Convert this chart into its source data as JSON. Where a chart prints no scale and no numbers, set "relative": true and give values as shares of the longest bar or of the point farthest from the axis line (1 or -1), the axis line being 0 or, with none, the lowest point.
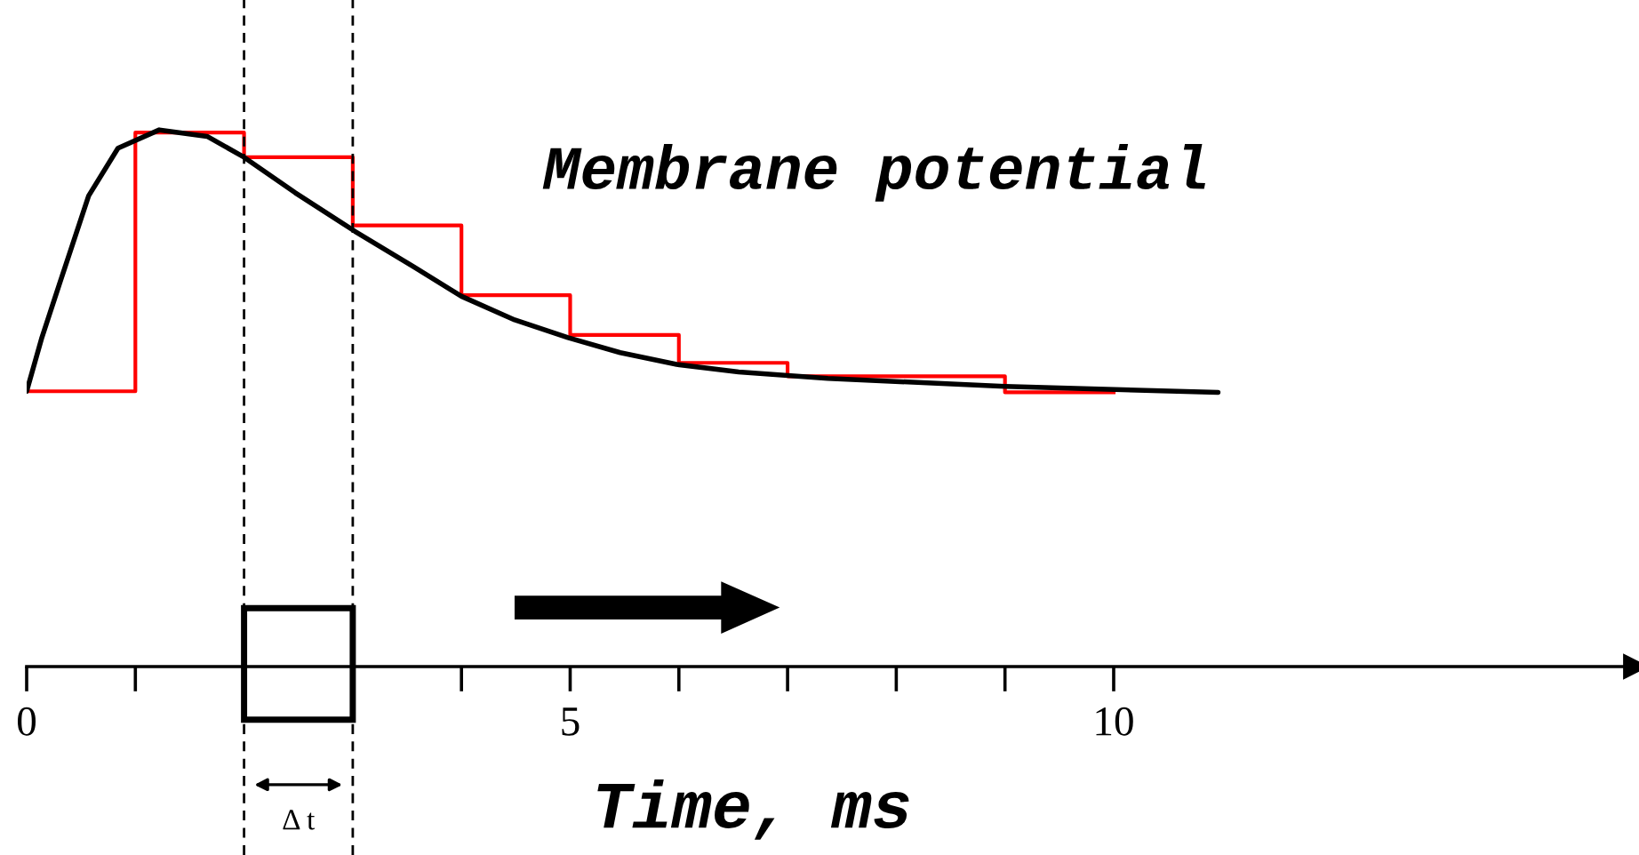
{
  "chart_data": {
    "type": "line",
    "relative": true,
    "xlabel": "Time, ms",
    "xlim": [
      0,
      14.8
    ],
    "xticks": [
      0,
      {
        "value": 1,
        "label": null
      },
      {
        "value": 2,
        "label": null
      },
      {
        "value": 3,
        "label": null
      },
      {
        "value": 4,
        "label": null
      },
      5,
      {
        "value": 6,
        "label": null
      },
      {
        "value": 7,
        "label": null
      },
      {
        "value": 8,
        "label": null
      },
      {
        "value": 9,
        "label": null
      },
      10
    ],
    "series": [
      {
        "type": "step",
        "color": "#ff0000",
        "x": [
          0,
          1,
          2,
          3,
          4,
          5,
          6,
          7,
          8,
          9,
          10
        ],
        "values": [
          0.513,
          0.995,
          0.949,
          0.822,
          0.692,
          0.618,
          0.566,
          0.541,
          0.541,
          0.511,
          0.511
        ]
      },
      {
        "color": "#000000",
        "x": [
          0,
          0.14,
          0.3,
          0.57,
          0.84,
          1.22,
          1.66,
          2.0,
          2.47,
          3.02,
          3.56,
          4.0,
          4.49,
          4.98,
          5.46,
          5.98,
          6.55,
          7.37,
          9.0,
          10.96
        ],
        "values": [
          0.513,
          0.613,
          0.712,
          0.877,
          0.966,
          1,
          0.988,
          0.949,
          0.883,
          0.811,
          0.745,
          0.69,
          0.646,
          0.613,
          0.585,
          0.563,
          0.549,
          0.537,
          0.522,
          0.511
        ]
      }
    ],
    "ref_lines": [
      {
        "axis": "x",
        "value": 2,
        "color": "#000000",
        "line_style": "dashed"
      },
      {
        "axis": "x",
        "value": 3,
        "color": "#000000",
        "line_style": "dashed"
      }
    ],
    "annotations": [
      "Membrane potential",
      "Δ t"
    ],
    "grid": false
  }
}
